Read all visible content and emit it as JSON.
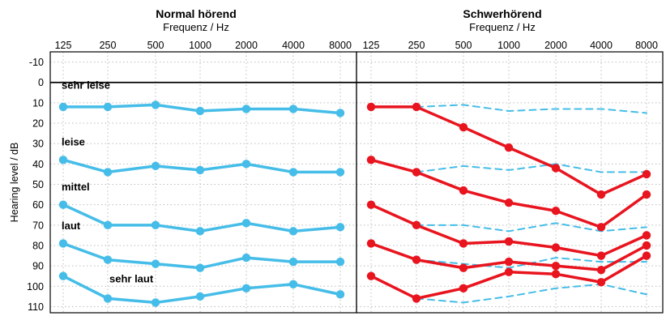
{
  "chart_data": [
    {
      "type": "line",
      "title": "Normal hörend",
      "subtitle": "Frequenz / Hz",
      "ylabel": "Hearing level / dB",
      "x": [
        "125",
        "250",
        "500",
        "1000",
        "2000",
        "4000",
        "8000"
      ],
      "yticks": [
        "-10",
        "0",
        "10",
        "20",
        "30",
        "40",
        "50",
        "60",
        "70",
        "80",
        "90",
        "100",
        "110"
      ],
      "ylim": [
        -15,
        113
      ],
      "y_inverted": true,
      "reference_line": 0,
      "grid": true,
      "series": [
        {
          "label": "sehr leise",
          "values": [
            12,
            12,
            11,
            14,
            13,
            13,
            15
          ]
        },
        {
          "label": "leise",
          "values": [
            38,
            44,
            41,
            43,
            40,
            44,
            44
          ]
        },
        {
          "label": "mittel",
          "values": [
            60,
            70,
            70,
            73,
            69,
            73,
            71
          ]
        },
        {
          "label": "laut",
          "values": [
            79,
            87,
            89,
            91,
            86,
            88,
            88
          ]
        },
        {
          "label": "sehr laut",
          "values": [
            95,
            106,
            108,
            105,
            101,
            99,
            104
          ]
        }
      ],
      "colors": {
        "line": "#45bde8"
      }
    },
    {
      "type": "line",
      "title": "Schwerhörend",
      "subtitle": "Frequenz / Hz",
      "x": [
        "125",
        "250",
        "500",
        "1000",
        "2000",
        "4000",
        "8000"
      ],
      "ylim": [
        -15,
        113
      ],
      "y_inverted": true,
      "reference_line": 0,
      "grid": true,
      "series": [
        {
          "values": [
            12,
            12,
            22,
            32,
            42,
            55,
            45
          ]
        },
        {
          "values": [
            38,
            44,
            53,
            59,
            63,
            71,
            55
          ]
        },
        {
          "values": [
            60,
            70,
            79,
            78,
            81,
            85,
            75
          ]
        },
        {
          "values": [
            79,
            87,
            91,
            88,
            90,
            92,
            80
          ]
        },
        {
          "values": [
            95,
            106,
            101,
            93,
            94,
            98,
            85
          ]
        }
      ],
      "reference_series": [
        {
          "values": [
            12,
            12,
            11,
            14,
            13,
            13,
            15
          ]
        },
        {
          "values": [
            38,
            44,
            41,
            43,
            40,
            44,
            44
          ]
        },
        {
          "values": [
            60,
            70,
            70,
            73,
            69,
            73,
            71
          ]
        },
        {
          "values": [
            79,
            87,
            89,
            91,
            86,
            88,
            88
          ]
        },
        {
          "values": [
            95,
            106,
            108,
            105,
            101,
            99,
            104
          ]
        }
      ],
      "colors": {
        "line": "#e8141e",
        "reference": "#45bde8"
      }
    }
  ]
}
